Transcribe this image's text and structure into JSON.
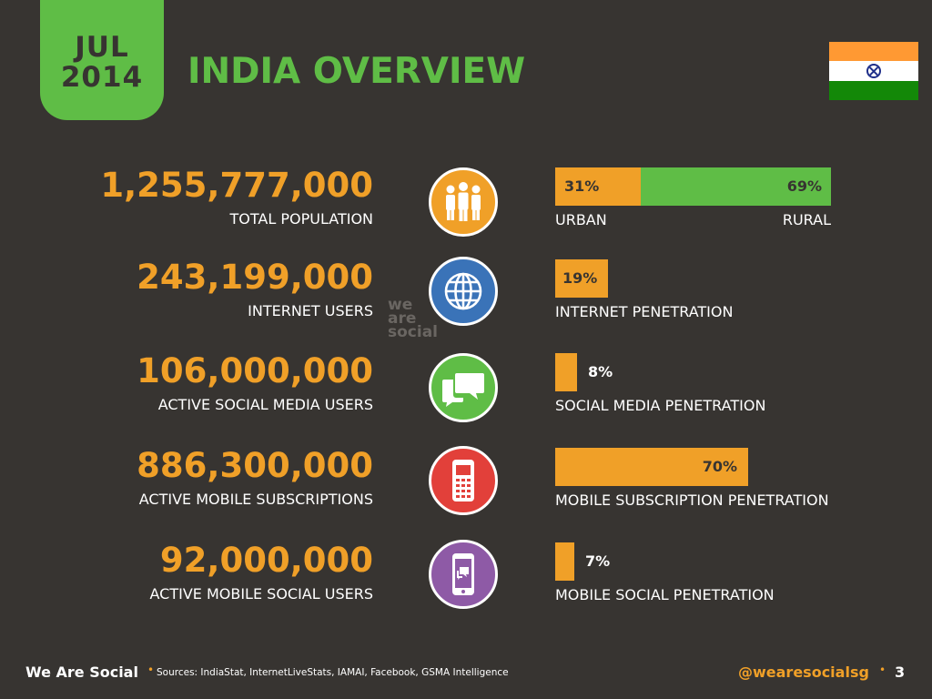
{
  "header": {
    "date_month": "JUL",
    "date_year": "2014",
    "title": "INDIA OVERVIEW"
  },
  "colors": {
    "background": "#373431",
    "accent_green": "#5fbd46",
    "accent_orange": "#f0a028",
    "icon_population": "#f0a028",
    "icon_internet": "#3a73b8",
    "icon_social": "#5fbd46",
    "icon_mobile": "#e2403a",
    "icon_mobile_social": "#8e5aa6",
    "flag_saffron": "#ff9933",
    "flag_white": "#ffffff",
    "flag_green": "#138808"
  },
  "icons": {
    "flag": "india-flag-icon",
    "population": "people-icon",
    "internet": "globe-icon",
    "social": "chat-bubbles-icon",
    "mobile": "mobile-phone-icon",
    "mobile_social": "smartphone-chat-icon"
  },
  "watermark": [
    "we",
    "are",
    "social"
  ],
  "chart_data": {
    "type": "bar",
    "title": "INDIA OVERVIEW",
    "rows": [
      {
        "value_text": "1,255,777,000",
        "label": "TOTAL POPULATION",
        "bar_kind": "split",
        "segments": [
          {
            "name": "URBAN",
            "percent": 31,
            "pct_text": "31%"
          },
          {
            "name": "RURAL",
            "percent": 69,
            "pct_text": "69%"
          }
        ]
      },
      {
        "value_text": "243,199,000",
        "label": "INTERNET USERS",
        "bar_kind": "single",
        "percent": 19,
        "pct_text": "19%",
        "bar_label": "INTERNET PENETRATION"
      },
      {
        "value_text": "106,000,000",
        "label": "ACTIVE SOCIAL MEDIA USERS",
        "bar_kind": "single",
        "percent": 8,
        "pct_text": "8%",
        "bar_label": "SOCIAL MEDIA PENETRATION"
      },
      {
        "value_text": "886,300,000",
        "label": "ACTIVE MOBILE SUBSCRIPTIONS",
        "bar_kind": "single",
        "percent": 70,
        "pct_text": "70%",
        "bar_label": "MOBILE SUBSCRIPTION PENETRATION"
      },
      {
        "value_text": "92,000,000",
        "label": "ACTIVE MOBILE SOCIAL USERS",
        "bar_kind": "single",
        "percent": 7,
        "pct_text": "7%",
        "bar_label": "MOBILE SOCIAL PENETRATION"
      }
    ]
  },
  "footer": {
    "brand": "We Are Social",
    "sources": "Sources: IndiaStat, InternetLiveStats, IAMAI, Facebook, GSMA Intelligence",
    "handle": "@wearesocialsg",
    "page_number": "3"
  }
}
